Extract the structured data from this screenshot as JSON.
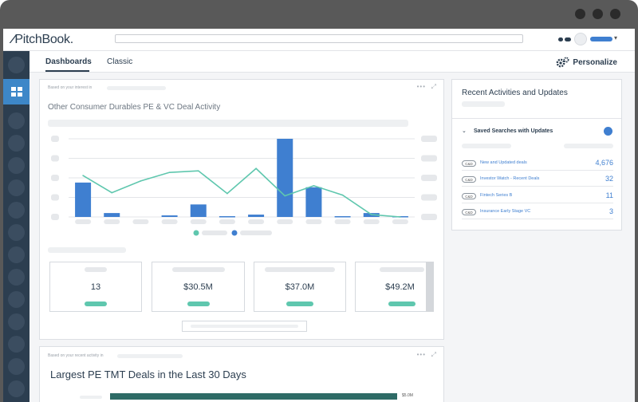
{
  "app": {
    "brand": "PitchBook"
  },
  "tabs": [
    {
      "label": "Dashboards",
      "active": true
    },
    {
      "label": "Classic",
      "active": false
    }
  ],
  "toolbar": {
    "personalize_label": "Personalize"
  },
  "deal_card": {
    "context_prefix": "Based on your interest in",
    "title": "Other Consumer Durables PE & VC Deal Activity",
    "kpis": [
      {
        "value": "13"
      },
      {
        "value": "$30.5M"
      },
      {
        "value": "$37.0M"
      },
      {
        "value": "$49.2M"
      }
    ]
  },
  "chart_data": {
    "type": "bar",
    "categories": [
      "",
      "",
      "",
      "",
      "",
      "",
      "",
      "",
      "",
      "",
      "",
      ""
    ],
    "series": [
      {
        "type": "bar",
        "color": "#3f7fd0",
        "values": [
          44,
          5,
          0,
          2,
          16,
          1,
          3,
          100,
          38,
          1,
          5,
          1
        ]
      },
      {
        "type": "line",
        "color": "#5fc7ae",
        "values": [
          53,
          31,
          46,
          57,
          59,
          30,
          62,
          27,
          40,
          28,
          3,
          0
        ]
      }
    ],
    "ylim": [
      0,
      100
    ],
    "grid": true,
    "legend": "bottom"
  },
  "tmt_card": {
    "context_prefix": "Based on your recent activity in",
    "title": "Largest PE TMT Deals in the Last 30 Days",
    "first_value": "$5.0M"
  },
  "recent_panel": {
    "title": "Recent Activities and Updates",
    "saved_searches_title": "Saved Searches with Updates",
    "items": [
      {
        "badge": "C&D",
        "name": "New and Updated deals",
        "count": "4,676"
      },
      {
        "badge": "C&D",
        "name": "Investor Watch - Recent Deals",
        "count": "32"
      },
      {
        "badge": "C&D",
        "name": "Fintech Series B",
        "count": "11"
      },
      {
        "badge": "C&D",
        "name": "Insurance Early Stage VC",
        "count": "3"
      }
    ]
  },
  "colors": {
    "brand_dark": "#2c3e50",
    "accent_blue": "#3f7fd0",
    "accent_green": "#5fc7ae",
    "rail_active": "#3d87c8"
  }
}
